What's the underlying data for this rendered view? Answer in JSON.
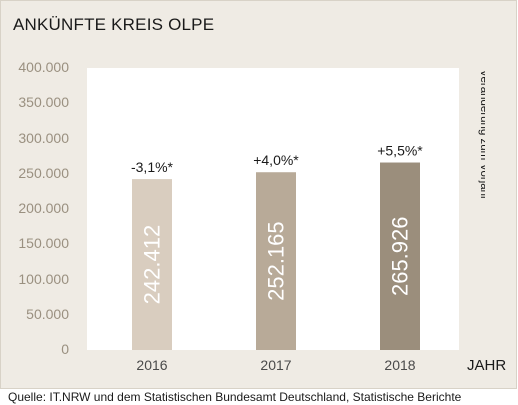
{
  "colors": {
    "frame_bg": "#efebe4",
    "plot_bg": "#ffffff",
    "bars": [
      "#d9cdbf",
      "#b8aa98",
      "#9b8e7c"
    ],
    "tick_label": "#9a9080",
    "value_label": "#ffffff"
  },
  "chart_data": {
    "type": "bar",
    "title": "ANKÜNFTE KREIS OLPE",
    "categories": [
      "2016",
      "2017",
      "2018"
    ],
    "values": [
      242412,
      252165,
      265926
    ],
    "value_labels": [
      "242.412",
      "252.165",
      "265.926"
    ],
    "change_labels": [
      "-3,1%*",
      "+4,0%*",
      "+5,5%*"
    ],
    "ylim": [
      0,
      400000
    ],
    "yticks": [
      "0",
      "50.000",
      "100.000",
      "150.000",
      "200.000",
      "250.000",
      "300.000",
      "350.000",
      "400.000"
    ],
    "xlabel": "JAHR",
    "side_note": "*Veränderung zum Vorjahr",
    "grid": false
  },
  "footer": {
    "source": "Quelle: IT.NRW und dem Statistischen Bundesamt Deutschland, Statistische Berichte"
  }
}
